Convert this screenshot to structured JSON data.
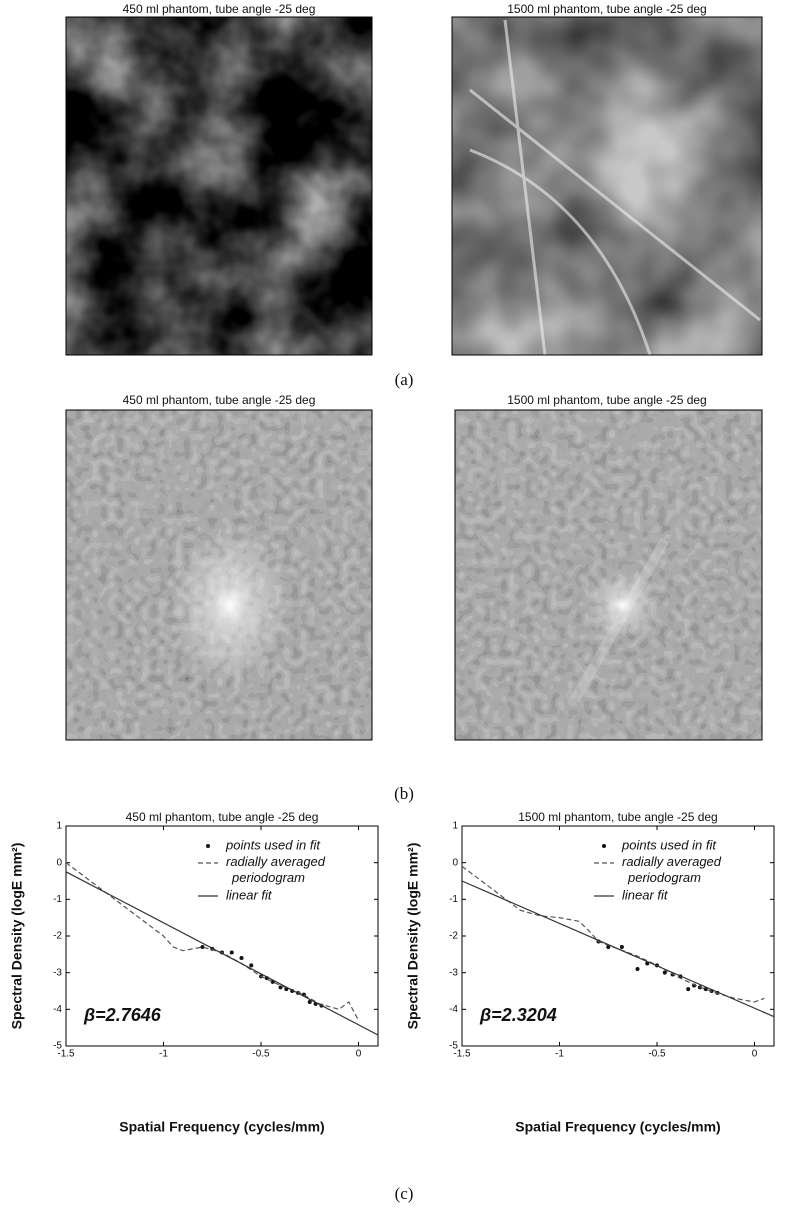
{
  "panels": [
    {
      "label": "(a)",
      "images": [
        {
          "title": "450 ml phantom, tube angle -25 deg"
        },
        {
          "title": "1500 ml phantom, tube angle -25 deg"
        }
      ]
    },
    {
      "label": "(b)",
      "images": [
        {
          "title": "450 ml phantom, tube angle -25 deg"
        },
        {
          "title": "1500 ml phantom, tube angle -25 deg"
        }
      ]
    },
    {
      "label": "(c)"
    }
  ],
  "chart_data": [
    {
      "type": "line",
      "title": "450 ml phantom, tube angle -25 deg",
      "xlabel": "Spatial Frequency (cycles/mm)",
      "ylabel": "Spectral Density (logE mm²)",
      "annotation": "β=2.7646",
      "legend": "upper right",
      "xlim": [
        -1.5,
        0.1
      ],
      "ylim": [
        -5,
        1
      ],
      "xticks": [
        -1.5,
        -1,
        -0.5,
        0
      ],
      "yticks": [
        -5,
        -4,
        -3,
        -2,
        -1,
        0,
        1
      ],
      "series": [
        {
          "name": "points used in fit",
          "mode": "markers",
          "color": "#111111",
          "x": [
            -0.8,
            -0.75,
            -0.7,
            -0.65,
            -0.6,
            -0.55,
            -0.5,
            -0.47,
            -0.44,
            -0.4,
            -0.37,
            -0.34,
            -0.31,
            -0.28,
            -0.25,
            -0.22,
            -0.19
          ],
          "values": [
            -2.3,
            -2.35,
            -2.45,
            -2.45,
            -2.6,
            -2.8,
            -3.1,
            -3.15,
            -3.25,
            -3.4,
            -3.45,
            -3.5,
            -3.55,
            -3.6,
            -3.8,
            -3.85,
            -3.9
          ]
        },
        {
          "name": "radially averaged periodogram",
          "mode": "dashed",
          "color": "#555555",
          "x": [
            -1.5,
            -1.4,
            -1.3,
            -1.2,
            -1.1,
            -1.0,
            -0.95,
            -0.9,
            -0.85,
            -0.8,
            -0.7,
            -0.6,
            -0.5,
            -0.4,
            -0.3,
            -0.2,
            -0.1,
            -0.05,
            0
          ],
          "values": [
            0,
            -0.4,
            -0.8,
            -1.2,
            -1.6,
            -2.0,
            -2.3,
            -2.4,
            -2.35,
            -2.3,
            -2.45,
            -2.75,
            -3.1,
            -3.35,
            -3.55,
            -3.85,
            -4.0,
            -3.8,
            -4.3
          ]
        },
        {
          "name": "linear fit",
          "mode": "solid",
          "color": "#333333",
          "x": [
            -1.5,
            0.1
          ],
          "values": [
            -0.25,
            -4.7
          ]
        }
      ]
    },
    {
      "type": "line",
      "title": "1500 ml phantom, tube angle -25 deg",
      "xlabel": "Spatial Frequency (cycles/mm)",
      "ylabel": "Spectral Density (logE mm²)",
      "annotation": "β=2.3204",
      "legend": "upper right",
      "xlim": [
        -1.5,
        0.1
      ],
      "ylim": [
        -5,
        1
      ],
      "xticks": [
        -1.5,
        -1,
        -0.5,
        0
      ],
      "yticks": [
        -5,
        -4,
        -3,
        -2,
        -1,
        0,
        1
      ],
      "series": [
        {
          "name": "points used in fit",
          "mode": "markers",
          "color": "#111111",
          "x": [
            -0.8,
            -0.75,
            -0.68,
            -0.6,
            -0.55,
            -0.5,
            -0.46,
            -0.42,
            -0.38,
            -0.34,
            -0.31,
            -0.28,
            -0.25,
            -0.22,
            -0.19
          ],
          "values": [
            -2.15,
            -2.3,
            -2.3,
            -2.9,
            -2.75,
            -2.8,
            -3.0,
            -3.05,
            -3.1,
            -3.45,
            -3.35,
            -3.4,
            -3.45,
            -3.5,
            -3.55
          ]
        },
        {
          "name": "radially averaged periodogram",
          "mode": "dashed",
          "color": "#555555",
          "x": [
            -1.5,
            -1.4,
            -1.3,
            -1.2,
            -1.1,
            -1.0,
            -0.9,
            -0.85,
            -0.8,
            -0.7,
            -0.6,
            -0.5,
            -0.4,
            -0.3,
            -0.2,
            -0.1,
            0,
            0.05
          ],
          "values": [
            -0.1,
            -0.5,
            -0.9,
            -1.3,
            -1.45,
            -1.5,
            -1.6,
            -1.85,
            -2.15,
            -2.35,
            -2.55,
            -2.8,
            -3.1,
            -3.35,
            -3.55,
            -3.7,
            -3.8,
            -3.7
          ]
        },
        {
          "name": "linear fit",
          "mode": "solid",
          "color": "#333333",
          "x": [
            -1.5,
            0.1
          ],
          "values": [
            -0.5,
            -4.2
          ]
        }
      ]
    }
  ]
}
